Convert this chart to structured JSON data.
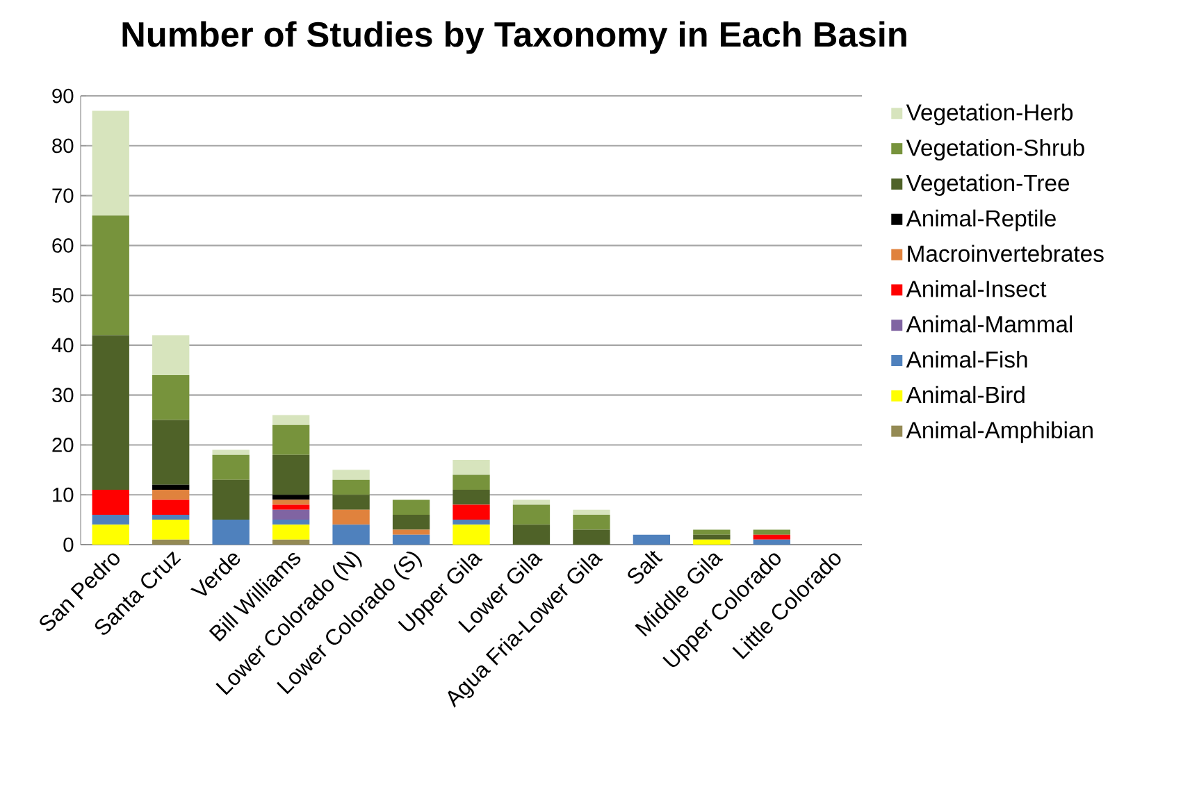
{
  "chart_data": {
    "type": "bar",
    "title": "Number of Studies by Taxonomy in Each Basin",
    "stacked": true,
    "grid": "y",
    "legend": "right",
    "categories": [
      "San Pedro",
      "Santa Cruz",
      "Verde",
      "Bill Williams",
      "Lower Colorado (N)",
      "Lower Colorado (S)",
      "Upper Gila",
      "Lower Gila",
      "Agua Fria-Lower Gila",
      "Salt",
      "Middle Gila",
      "Upper Colorado",
      "Little Colorado"
    ],
    "ylim": [
      0,
      90
    ],
    "yticks": [
      0,
      10,
      20,
      30,
      40,
      50,
      60,
      70,
      80,
      90
    ],
    "series": [
      {
        "name": "Animal-Amphibian",
        "color": "#948a54",
        "values": [
          0,
          1,
          0,
          1,
          0,
          0,
          0,
          0,
          0,
          0,
          0,
          0,
          0
        ]
      },
      {
        "name": "Animal-Bird",
        "color": "#ffff00",
        "values": [
          4,
          4,
          0,
          3,
          0,
          0,
          4,
          0,
          0,
          0,
          1,
          0,
          0
        ]
      },
      {
        "name": "Animal-Fish",
        "color": "#4f81bd",
        "values": [
          2,
          1,
          5,
          1,
          4,
          2,
          1,
          0,
          0,
          2,
          0,
          1,
          0
        ]
      },
      {
        "name": "Animal-Mammal",
        "color": "#8064a2",
        "values": [
          0,
          0,
          0,
          2,
          0,
          0,
          0,
          0,
          0,
          0,
          0,
          0,
          0
        ]
      },
      {
        "name": "Animal-Insect",
        "color": "#ff0000",
        "values": [
          5,
          3,
          0,
          1,
          0,
          0,
          3,
          0,
          0,
          0,
          0,
          1,
          0
        ]
      },
      {
        "name": "Macroinvertebrates",
        "color": "#e0823d",
        "values": [
          0,
          2,
          0,
          1,
          3,
          1,
          0,
          0,
          0,
          0,
          0,
          0,
          0
        ]
      },
      {
        "name": "Animal-Reptile",
        "color": "#000000",
        "values": [
          0,
          1,
          0,
          1,
          0,
          0,
          0,
          0,
          0,
          0,
          0,
          0,
          0
        ]
      },
      {
        "name": "Vegetation-Tree",
        "color": "#4f6228",
        "values": [
          31,
          13,
          8,
          8,
          3,
          3,
          3,
          4,
          3,
          0,
          1,
          0,
          0
        ]
      },
      {
        "name": "Vegetation-Shrub",
        "color": "#77933c",
        "values": [
          24,
          9,
          5,
          6,
          3,
          3,
          3,
          4,
          3,
          0,
          1,
          1,
          0
        ]
      },
      {
        "name": "Vegetation-Herb",
        "color": "#d7e4bd",
        "values": [
          21,
          8,
          1,
          2,
          2,
          0,
          3,
          1,
          1,
          0,
          0,
          0,
          0
        ]
      }
    ]
  }
}
